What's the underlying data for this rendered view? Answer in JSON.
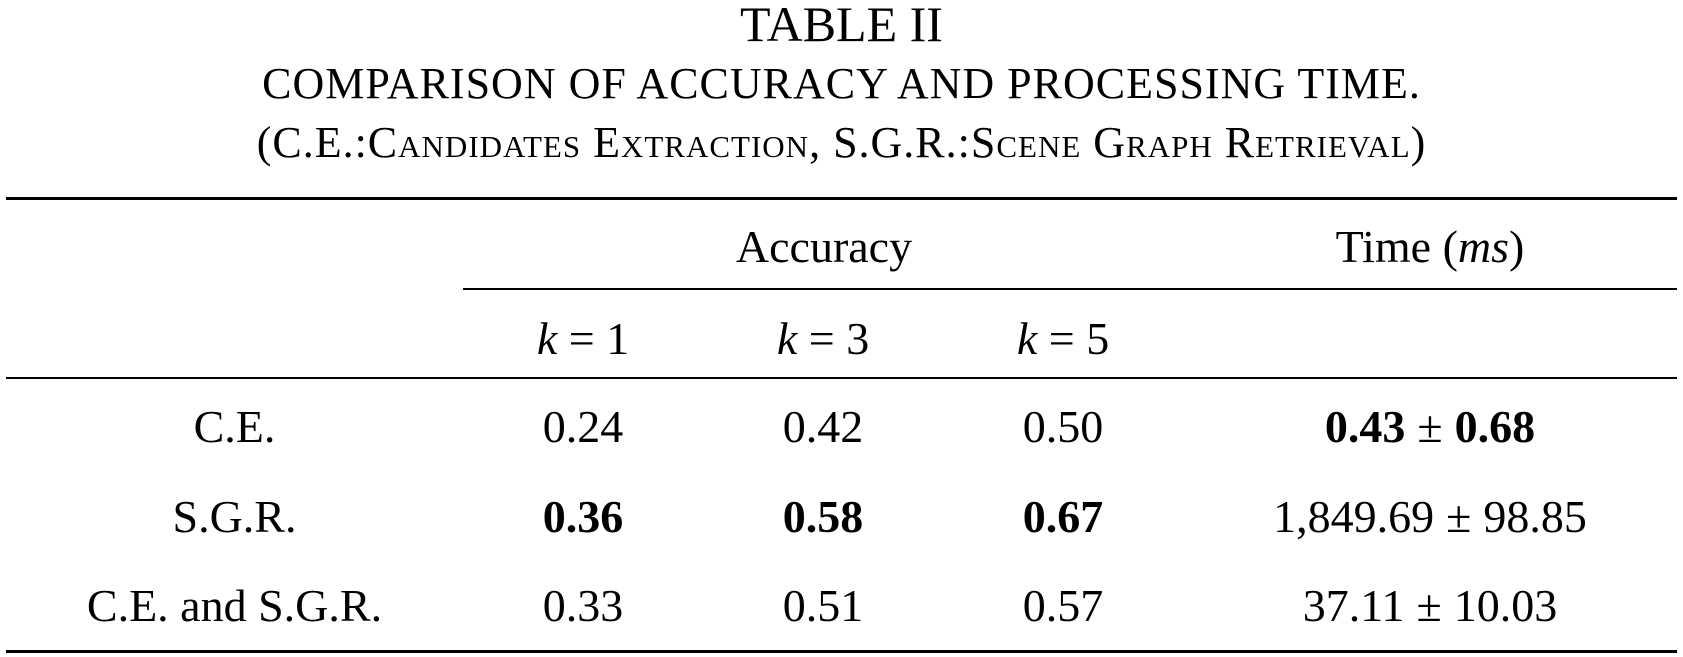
{
  "caption": {
    "label": "TABLE II",
    "line1": "COMPARISON OF ACCURACY AND PROCESSING TIME.",
    "line2": "(C.E.:Candidates Extraction, S.G.R.:Scene Graph Retrieval)"
  },
  "header": {
    "accuracy": "Accuracy",
    "time_prefix": "Time (",
    "time_unit": "ms",
    "time_suffix": ")",
    "k_var": "k",
    "k_eq": " = ",
    "k_values": [
      "1",
      "3",
      "5"
    ]
  },
  "pm_symbol": "±",
  "rows": [
    {
      "method": "C.E.",
      "acc": [
        "0.24",
        "0.42",
        "0.50"
      ],
      "acc_bold": [
        false,
        false,
        false
      ],
      "time_mean": "0.43",
      "time_std": "0.68",
      "time_bold": true
    },
    {
      "method": "S.G.R.",
      "acc": [
        "0.36",
        "0.58",
        "0.67"
      ],
      "acc_bold": [
        true,
        true,
        true
      ],
      "time_mean": "1,849.69",
      "time_std": "98.85",
      "time_bold": false
    },
    {
      "method": "C.E. and S.G.R.",
      "acc": [
        "0.33",
        "0.51",
        "0.57"
      ],
      "acc_bold": [
        false,
        false,
        false
      ],
      "time_mean": "37.11",
      "time_std": "10.03",
      "time_bold": false
    }
  ]
}
